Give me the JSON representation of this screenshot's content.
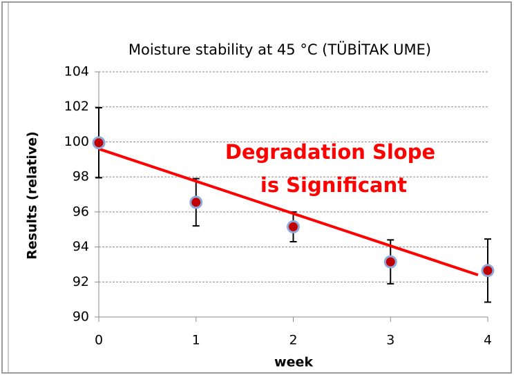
{
  "chart_data": {
    "type": "scatter",
    "title": "Moisture stability at 45 °C (TÜBİTAK UME)",
    "xlabel": "week",
    "ylabel": "Results (relative)",
    "x": [
      0,
      1,
      2,
      3,
      4
    ],
    "series": [
      {
        "color": "#c00000",
        "edge_color": "#8ea9db",
        "values": [
          99.95,
          96.55,
          95.15,
          93.15,
          92.65
        ],
        "errors": [
          2,
          1.35,
          0.85,
          1.25,
          1.8
        ]
      }
    ],
    "trendline": {
      "color": "#ff0000",
      "x": [
        0,
        3.9
      ],
      "values": [
        99.6,
        92.4
      ]
    },
    "annotation": {
      "lines": [
        "Degradation Slope",
        "is Significant"
      ],
      "color": "#ff0000"
    },
    "xlim": [
      0,
      4
    ],
    "xticks": [
      0,
      1,
      2,
      3,
      4
    ],
    "ylim": [
      90,
      104
    ],
    "yticks": [
      90,
      92,
      94,
      96,
      98,
      100,
      102,
      104
    ],
    "grid": true
  }
}
